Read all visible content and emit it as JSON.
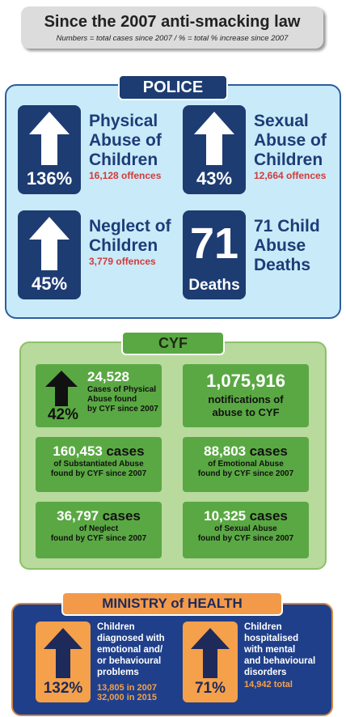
{
  "header": {
    "title": "Since the 2007 anti-smacking law",
    "subtitle": "Numbers = total cases since 2007 / % = total % increase since 2007"
  },
  "police": {
    "label": "POLICE",
    "items": [
      {
        "stat": "136%",
        "title_lines": [
          "Physical",
          "Abuse of",
          "Children"
        ],
        "detail": "16,128 offences"
      },
      {
        "stat": "43%",
        "title_lines": [
          "Sexual",
          "Abuse of",
          "Children"
        ],
        "detail": "12,664 offences"
      },
      {
        "stat": "45%",
        "title_lines": [
          "Neglect of",
          "Children"
        ],
        "detail": "3,779 offences"
      },
      {
        "stat": "71",
        "stat_caption": "Deaths",
        "title_lines": [
          "71 Child",
          "Abuse",
          "Deaths"
        ]
      }
    ]
  },
  "cyf": {
    "label": "CYF",
    "items": [
      {
        "stat": "42%",
        "number": "24,528",
        "lines": [
          "Cases of Physical",
          "Abuse found",
          "by CYF since 2007"
        ]
      },
      {
        "number": "1,075,916",
        "lines": [
          "notifications of",
          "abuse to CYF"
        ]
      },
      {
        "number": "160,453",
        "unit": "cases",
        "lines": [
          "of Substantiated Abuse",
          "found by CYF since 2007"
        ]
      },
      {
        "number": "88,803",
        "unit": "cases",
        "lines": [
          "of Emotional Abuse",
          "found by CYF since 2007"
        ]
      },
      {
        "number": "36,797",
        "unit": "cases",
        "lines": [
          "of Neglect",
          "found by CYF since 2007"
        ]
      },
      {
        "number": "10,325",
        "unit": "cases",
        "lines": [
          "of Sexual  Abuse",
          "found by CYF since 2007"
        ]
      }
    ]
  },
  "health": {
    "label": "MINISTRY of HEALTH",
    "items": [
      {
        "stat": "132%",
        "lines": [
          "Children",
          "diagnosed with",
          "emotional and/",
          "or behavioural",
          "problems"
        ],
        "detail_lines": [
          "13,805 in 2007",
          "32,000 in 2015"
        ]
      },
      {
        "stat": "71%",
        "lines": [
          "Children",
          "hospitalised",
          "with mental",
          "and behavioural",
          "disorders"
        ],
        "detail_lines": [
          "14,942 total"
        ]
      }
    ]
  }
}
